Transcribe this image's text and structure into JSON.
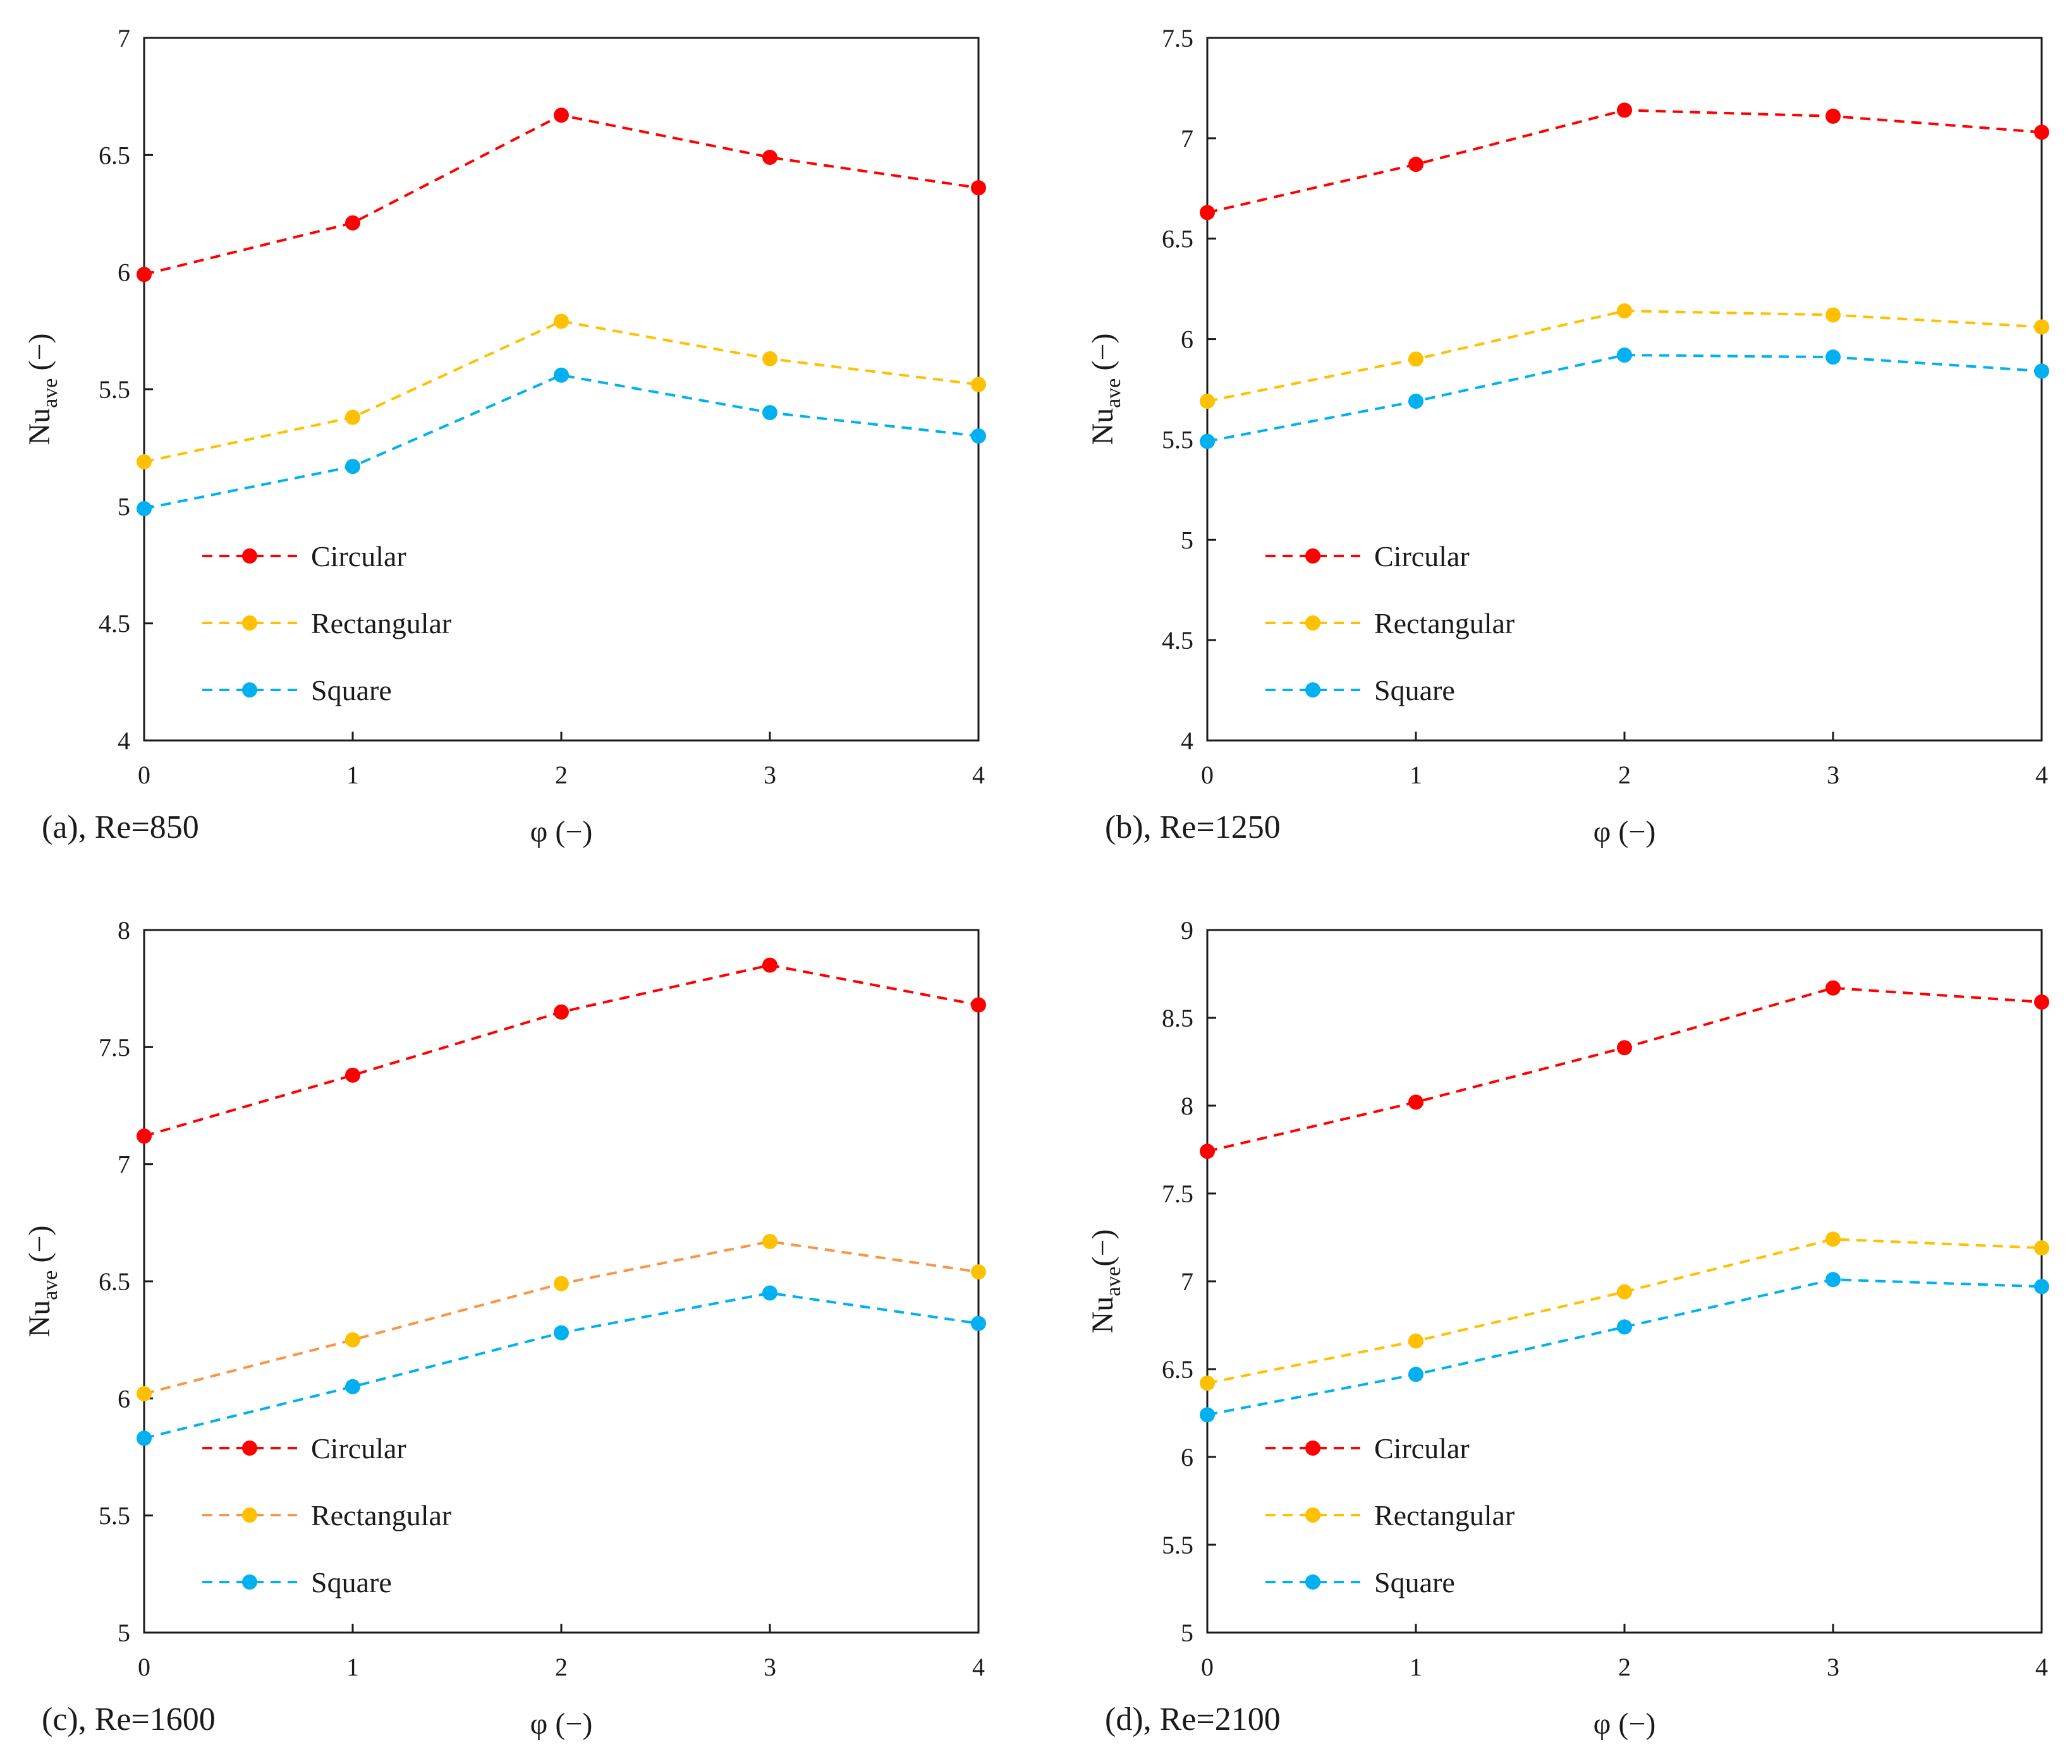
{
  "chart_data": [
    {
      "type": "line",
      "caption": "(a), Re=850",
      "xlabel": "φ (−)",
      "ylabel_main": "Nu",
      "ylabel_sub": "ave",
      "ylabel_tail": " (−)",
      "x": [
        0,
        1,
        2,
        3,
        4
      ],
      "xticks": [
        "0",
        "1",
        "2",
        "3",
        "4"
      ],
      "ylim": [
        4,
        7
      ],
      "yticks": [
        "4",
        "4.5",
        "5",
        "5.5",
        "6",
        "6.5",
        "7"
      ],
      "grid": false,
      "legend_position": "lower-left",
      "series": [
        {
          "name": "Circular",
          "line_color": "#ff0000",
          "marker_color": "#ff0000",
          "values": [
            5.99,
            6.21,
            6.67,
            6.49,
            6.36
          ]
        },
        {
          "name": "Rectangular",
          "line_color": "#ffc000",
          "marker_color": "#ffc000",
          "values": [
            5.19,
            5.38,
            5.79,
            5.63,
            5.52
          ]
        },
        {
          "name": "Square",
          "line_color": "#00b0f0",
          "marker_color": "#00b0f0",
          "values": [
            4.99,
            5.17,
            5.56,
            5.4,
            5.3
          ]
        }
      ]
    },
    {
      "type": "line",
      "caption": "(b), Re=1250",
      "xlabel": "φ (−)",
      "ylabel_main": "Nu",
      "ylabel_sub": "ave",
      "ylabel_tail": " (−)",
      "x": [
        0,
        1,
        2,
        3,
        4
      ],
      "xticks": [
        "0",
        "1",
        "2",
        "3",
        "4"
      ],
      "ylim": [
        4,
        7.5
      ],
      "yticks": [
        "4",
        "4.5",
        "5",
        "5.5",
        "6",
        "6.5",
        "7",
        "7.5"
      ],
      "grid": false,
      "legend_position": "lower-left",
      "series": [
        {
          "name": "Circular",
          "line_color": "#ff0000",
          "marker_color": "#ff0000",
          "values": [
            6.63,
            6.87,
            7.14,
            7.11,
            7.03
          ]
        },
        {
          "name": "Rectangular",
          "line_color": "#ffc000",
          "marker_color": "#ffc000",
          "values": [
            5.69,
            5.9,
            6.14,
            6.12,
            6.06
          ]
        },
        {
          "name": "Square",
          "line_color": "#00b0f0",
          "marker_color": "#00b0f0",
          "values": [
            5.49,
            5.69,
            5.92,
            5.91,
            5.84
          ]
        }
      ]
    },
    {
      "type": "line",
      "caption": "(c), Re=1600",
      "xlabel": "φ (−)",
      "ylabel_main": "Nu",
      "ylabel_sub": "ave",
      "ylabel_tail": " (−)",
      "x": [
        0,
        1,
        2,
        3,
        4
      ],
      "xticks": [
        "0",
        "1",
        "2",
        "3",
        "4"
      ],
      "ylim": [
        5,
        8
      ],
      "yticks": [
        "5",
        "5.5",
        "6",
        "6.5",
        "7",
        "7.5",
        "8"
      ],
      "grid": false,
      "legend_position": "lower-left",
      "series": [
        {
          "name": "Circular",
          "line_color": "#ff0000",
          "marker_color": "#ff0000",
          "values": [
            7.12,
            7.38,
            7.65,
            7.85,
            7.68
          ]
        },
        {
          "name": "Rectangular",
          "line_color": "#f79646",
          "marker_color": "#ffc000",
          "values": [
            6.02,
            6.25,
            6.49,
            6.67,
            6.54
          ]
        },
        {
          "name": "Square",
          "line_color": "#00b0f0",
          "marker_color": "#00b0f0",
          "values": [
            5.83,
            6.05,
            6.28,
            6.45,
            6.32
          ]
        }
      ]
    },
    {
      "type": "line",
      "caption": "(d), Re=2100",
      "xlabel": "φ (−)",
      "ylabel_main": "Nu",
      "ylabel_sub": "ave",
      "ylabel_tail": "(−)",
      "x": [
        0,
        1,
        2,
        3,
        4
      ],
      "xticks": [
        "0",
        "1",
        "2",
        "3",
        "4"
      ],
      "ylim": [
        5,
        9
      ],
      "yticks": [
        "5",
        "5.5",
        "6",
        "6.5",
        "7",
        "7.5",
        "8",
        "8.5",
        "9"
      ],
      "grid": false,
      "legend_position": "lower-left",
      "series": [
        {
          "name": "Circular",
          "line_color": "#ff0000",
          "marker_color": "#ff0000",
          "values": [
            7.74,
            8.02,
            8.33,
            8.67,
            8.59
          ]
        },
        {
          "name": "Rectangular",
          "line_color": "#ffc000",
          "marker_color": "#ffc000",
          "values": [
            6.42,
            6.66,
            6.94,
            7.24,
            7.19
          ]
        },
        {
          "name": "Square",
          "line_color": "#00b0f0",
          "marker_color": "#00b0f0",
          "values": [
            6.24,
            6.47,
            6.74,
            7.01,
            6.97
          ]
        }
      ]
    }
  ]
}
